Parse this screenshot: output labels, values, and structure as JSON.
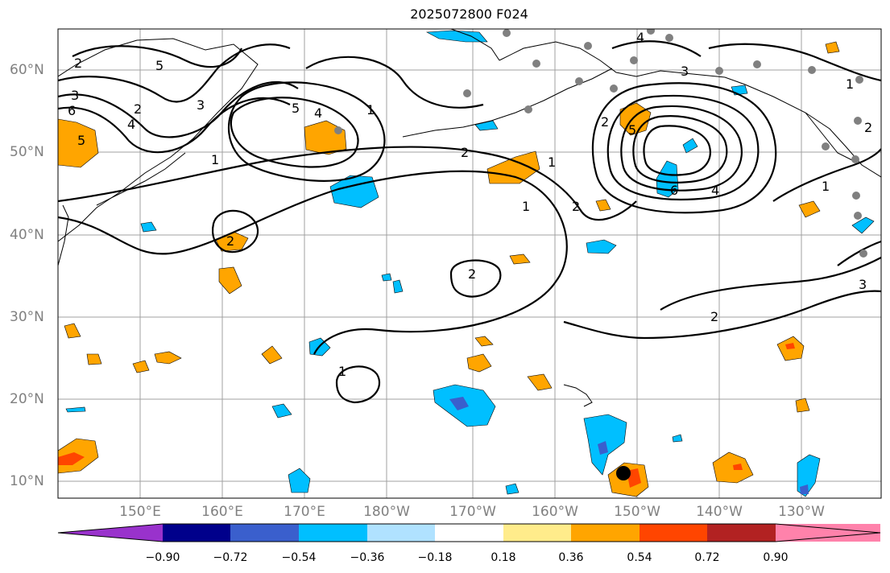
{
  "title": "2025072800 F024",
  "lat_ticks": [
    "60°N",
    "50°N",
    "40°N",
    "30°N",
    "20°N",
    "10°N"
  ],
  "lon_ticks": [
    "150°E",
    "160°E",
    "170°E",
    "180°W",
    "170°W",
    "160°W",
    "150°W",
    "140°W",
    "130°W"
  ],
  "colorbar": {
    "labels": [
      "−0.90",
      "−0.72",
      "−0.54",
      "−0.36",
      "−0.18",
      "0.18",
      "0.36",
      "0.54",
      "0.72",
      "0.90"
    ],
    "colors": [
      "#9932cc",
      "#00008b",
      "#3a5fcd",
      "#00bfff",
      "#b0e2ff",
      "#ffffff",
      "#ffec8b",
      "#ffa500",
      "#ff4500",
      "#b22222",
      "#ff82ab"
    ]
  },
  "contour_labels": [
    "1",
    "2",
    "3",
    "4",
    "5",
    "6"
  ],
  "shading_colors": {
    "orange": "#ffa500",
    "red": "#ff4500",
    "blue": "#00bfff",
    "indigo": "#3a5fcd"
  },
  "marker_colors": {
    "station": "#808080",
    "center": "#000000"
  }
}
